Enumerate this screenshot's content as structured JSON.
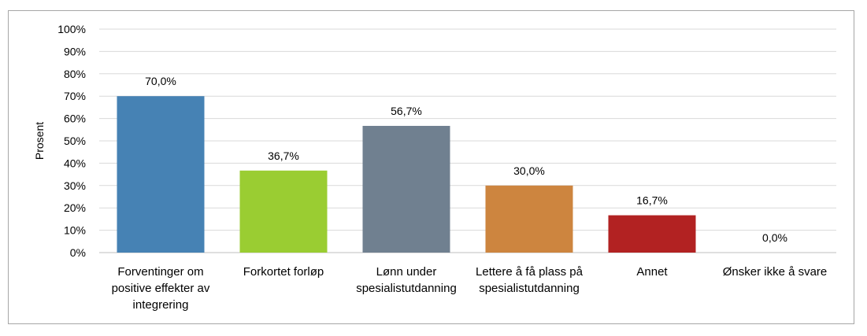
{
  "chart_data": {
    "type": "bar",
    "ylabel": "Prosent",
    "ylim": [
      0,
      100
    ],
    "yticks": [
      "0%",
      "10%",
      "20%",
      "30%",
      "40%",
      "50%",
      "60%",
      "70%",
      "80%",
      "90%",
      "100%"
    ],
    "grid": true,
    "categories": [
      [
        "Forventinger om",
        "positive effekter av",
        "integrering"
      ],
      [
        "Forkortet forløp"
      ],
      [
        "Lønn under",
        "spesialistutdanning"
      ],
      [
        "Lettere å få plass på",
        "spesialistutdanning"
      ],
      [
        "Annet"
      ],
      [
        "Ønsker ikke å svare"
      ]
    ],
    "values": [
      70.0,
      36.7,
      56.7,
      30.0,
      16.7,
      0.0
    ],
    "value_labels": [
      "70,0%",
      "36,7%",
      "56,7%",
      "30,0%",
      "16,7%",
      "0,0%"
    ],
    "colors": [
      "#4682b4",
      "#9acd32",
      "#708090",
      "#cd853f",
      "#b22222",
      "#808080"
    ]
  }
}
